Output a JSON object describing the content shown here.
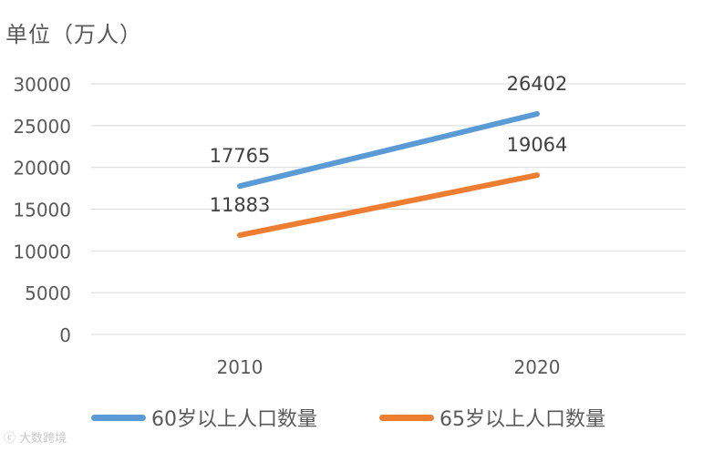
{
  "unit_label": "单位（万人）",
  "watermark": "大数跨境",
  "chart_data": {
    "type": "line",
    "title": "",
    "xlabel": "",
    "ylabel": "单位（万人）",
    "categories": [
      "2010",
      "2020"
    ],
    "ylim": [
      0,
      30000
    ],
    "yticks": [
      "0",
      "5000",
      "10000",
      "15000",
      "20000",
      "25000",
      "30000"
    ],
    "grid": true,
    "legend_position": "bottom",
    "series": [
      {
        "name": "60岁以上人口数量",
        "values": [
          17765,
          26402
        ],
        "labels": [
          "17765",
          "26402"
        ],
        "color": "#5B9BD5"
      },
      {
        "name": "65岁以上人口数量",
        "values": [
          11883,
          19064
        ],
        "labels": [
          "11883",
          "19064"
        ],
        "color": "#ED7D31"
      }
    ]
  }
}
